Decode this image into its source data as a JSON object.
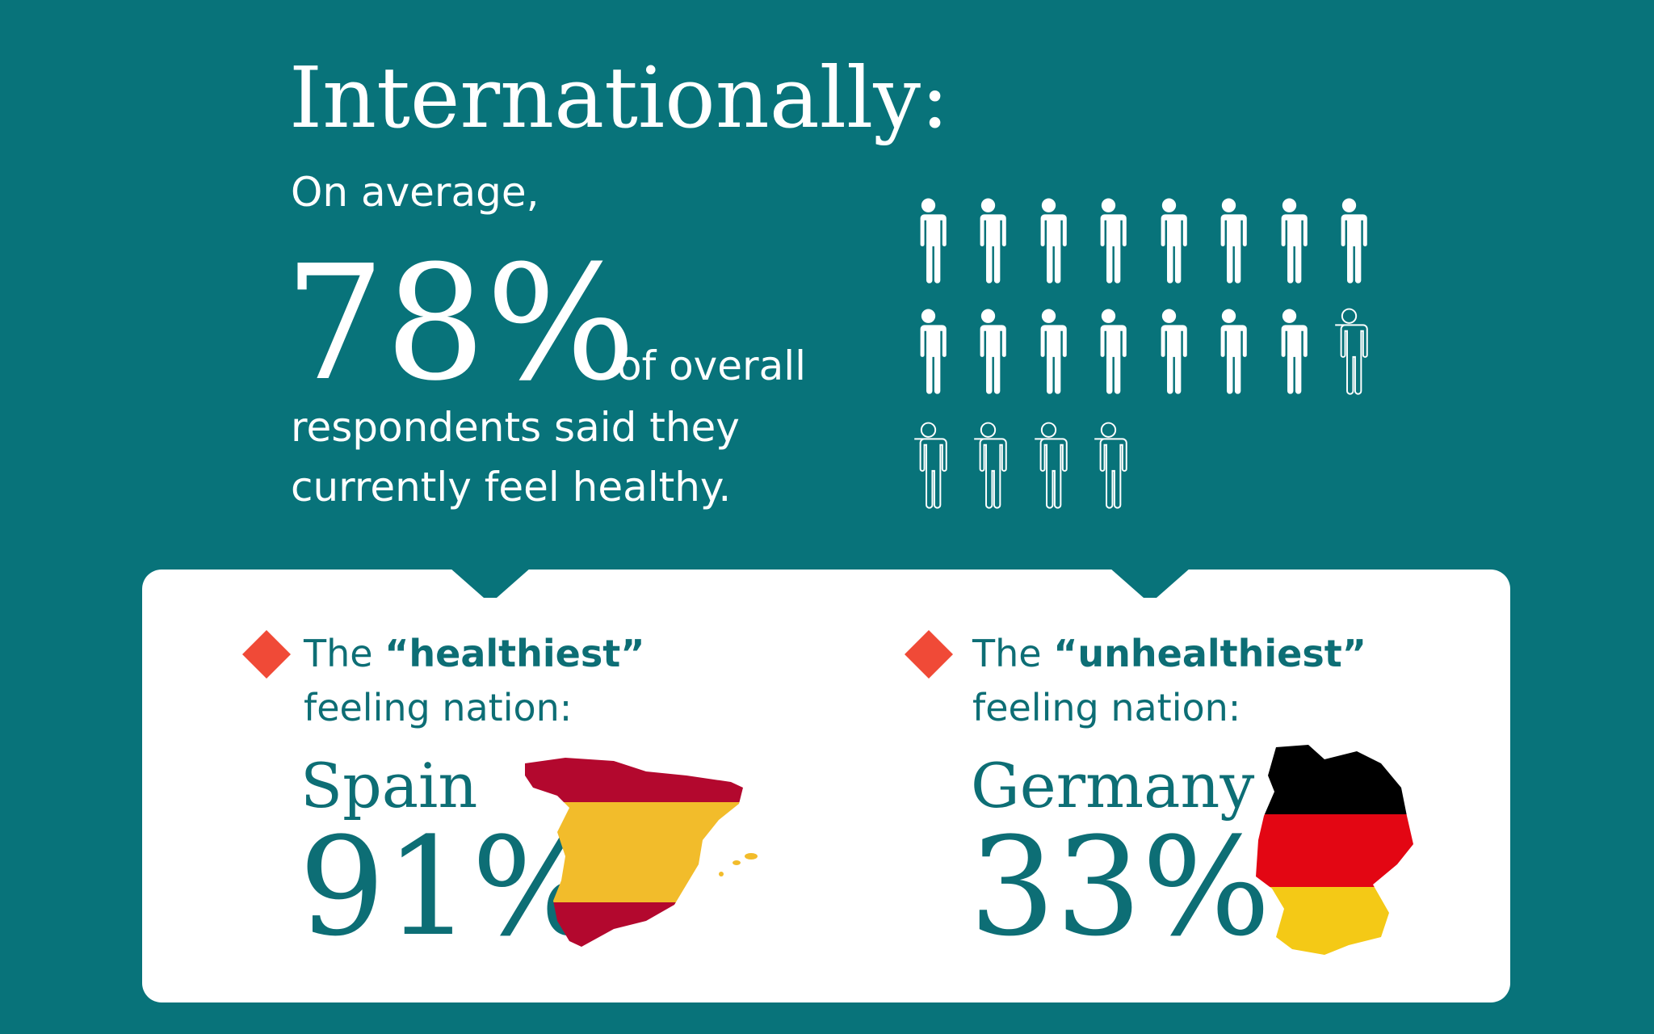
{
  "header": {
    "title": "Internationally:"
  },
  "summary": {
    "intro": "On average,",
    "value": "78%",
    "lines": [
      "of overall",
      "respondents said they",
      "currently feel healthy."
    ]
  },
  "nations": [
    {
      "prefix": "The",
      "label": "“healthiest”",
      "suffix": "feeling nation:",
      "country": "Spain",
      "value": "91%"
    },
    {
      "prefix": "The",
      "label": "“unhealthiest”",
      "suffix": "feeling nation:",
      "country": "Germany",
      "value": "33%"
    }
  ]
}
